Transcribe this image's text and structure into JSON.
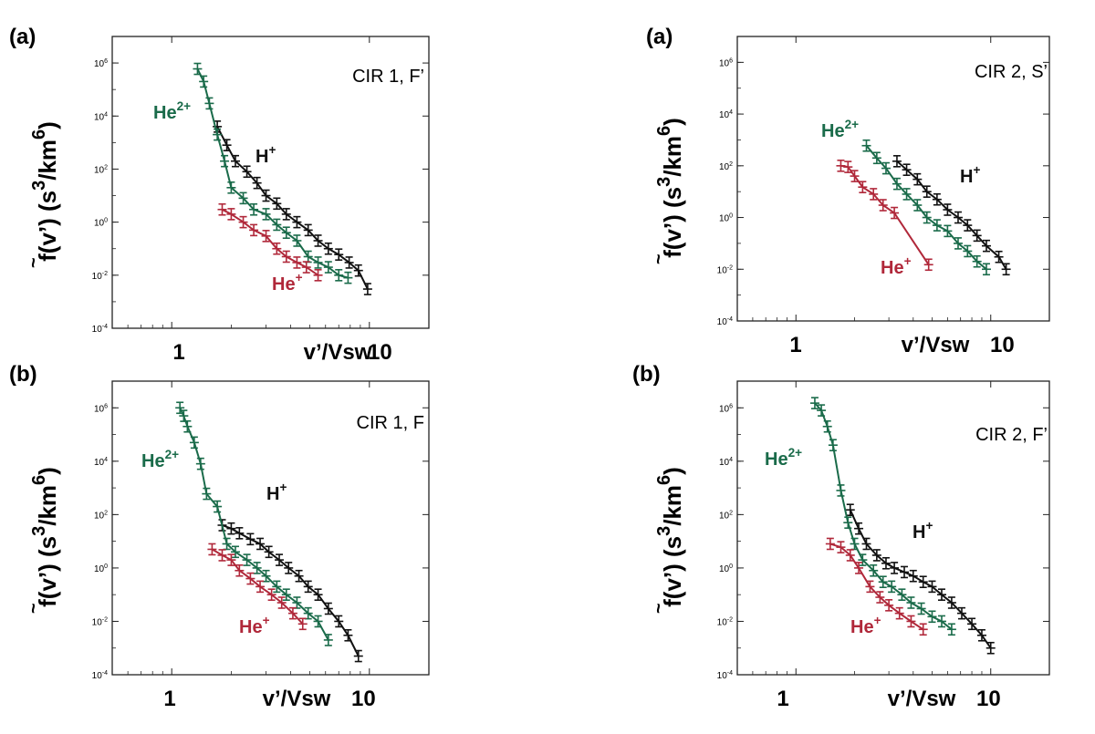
{
  "chart_data": [
    {
      "type": "scatter",
      "panel_label": "(a)",
      "title": "CIR 1, F’",
      "xlabel": "v’/Vsw",
      "ylabel": "f(v’) (s^3/km^6)",
      "x_scale": "log",
      "y_scale": "log",
      "xlim": [
        0.5,
        20
      ],
      "ylim": [
        0.0001,
        10000000
      ],
      "x_ticklabels": [
        "1",
        "10"
      ],
      "y_ticklabels": [
        "10^-4",
        "10^-2",
        "10^0",
        "10^2",
        "10^4",
        "10^6"
      ],
      "series": [
        {
          "name": "H+",
          "color": "#111111",
          "connected": true,
          "x": [
            1.7,
            1.9,
            2.1,
            2.4,
            2.7,
            3.0,
            3.4,
            3.8,
            4.3,
            4.9,
            5.5,
            6.2,
            7.0,
            7.9,
            8.8,
            9.8
          ],
          "y": [
            4000,
            800,
            200,
            80,
            30,
            10,
            5,
            2,
            1,
            0.5,
            0.2,
            0.1,
            0.06,
            0.03,
            0.015,
            0.003
          ]
        },
        {
          "name": "He2+",
          "color": "#1a6b4a",
          "connected": true,
          "x": [
            1.35,
            1.45,
            1.55,
            1.7,
            1.85,
            2.0,
            2.3,
            2.6,
            3.0,
            3.4,
            3.8,
            4.3,
            4.9,
            5.5,
            6.2,
            7.0,
            7.8
          ],
          "y": [
            600000,
            200000,
            30000,
            2000,
            200,
            20,
            8,
            3,
            2,
            0.8,
            0.4,
            0.2,
            0.05,
            0.03,
            0.02,
            0.01,
            0.008
          ]
        },
        {
          "name": "He+",
          "color": "#b0283a",
          "connected": true,
          "x": [
            1.8,
            2.0,
            2.3,
            2.6,
            3.0,
            3.4,
            3.8,
            4.3,
            4.8,
            5.5
          ],
          "y": [
            3,
            2,
            1,
            0.5,
            0.3,
            0.1,
            0.05,
            0.03,
            0.02,
            0.01
          ]
        }
      ],
      "series_labels": [
        {
          "text": "He",
          "sup": "2+",
          "series": "He2+"
        },
        {
          "text": "H",
          "sup": "+",
          "series": "H+"
        },
        {
          "text": "He",
          "sup": "+",
          "series": "He+"
        }
      ]
    },
    {
      "type": "scatter",
      "panel_label": "(a)",
      "title": "CIR 2, S’",
      "xlabel": "v’/Vsw",
      "ylabel": "f(v’) (s^3/km^6)",
      "x_scale": "log",
      "y_scale": "log",
      "xlim": [
        0.5,
        20
      ],
      "ylim": [
        0.0001,
        10000000
      ],
      "x_ticklabels": [
        "1",
        "10"
      ],
      "y_ticklabels": [
        "10^-4",
        "10^-2",
        "10^0",
        "10^2",
        "10^4",
        "10^6"
      ],
      "series": [
        {
          "name": "H+",
          "color": "#111111",
          "connected": true,
          "x": [
            3.3,
            3.7,
            4.2,
            4.7,
            5.3,
            6.0,
            6.8,
            7.6,
            8.5,
            9.5,
            11,
            12
          ],
          "y": [
            150,
            70,
            30,
            10,
            5,
            2,
            1,
            0.5,
            0.2,
            0.08,
            0.03,
            0.01
          ]
        },
        {
          "name": "He2+",
          "color": "#1a6b4a",
          "connected": true,
          "x": [
            2.3,
            2.6,
            2.9,
            3.3,
            3.7,
            4.2,
            4.7,
            5.3,
            6.0,
            6.8,
            7.6,
            8.5,
            9.5
          ],
          "y": [
            600,
            200,
            80,
            20,
            8,
            3,
            1,
            0.5,
            0.3,
            0.1,
            0.05,
            0.02,
            0.01
          ]
        },
        {
          "name": "He+",
          "color": "#b0283a",
          "connected": true,
          "x": [
            1.7,
            1.85,
            2.0,
            2.2,
            2.5,
            2.8,
            3.2,
            4.8
          ],
          "y": [
            100,
            90,
            40,
            15,
            8,
            3,
            1.5,
            0.015
          ]
        }
      ],
      "series_labels": [
        {
          "text": "He",
          "sup": "2+",
          "series": "He2+"
        },
        {
          "text": "H",
          "sup": "+",
          "series": "H+"
        },
        {
          "text": "He",
          "sup": "+",
          "series": "He+"
        }
      ]
    },
    {
      "type": "scatter",
      "panel_label": "(b)",
      "title": "CIR 1, F",
      "xlabel": "v’/Vsw",
      "ylabel": "f(v’) (s^3/km^6)",
      "x_scale": "log",
      "y_scale": "log",
      "xlim": [
        0.5,
        20
      ],
      "ylim": [
        0.0001,
        10000000
      ],
      "x_ticklabels": [
        "1",
        "10"
      ],
      "y_ticklabels": [
        "10^-4",
        "10^-2",
        "10^0",
        "10^2",
        "10^4",
        "10^6"
      ],
      "series": [
        {
          "name": "H+",
          "color": "#111111",
          "connected": true,
          "x": [
            1.8,
            2.0,
            2.2,
            2.5,
            2.8,
            3.1,
            3.5,
            3.9,
            4.4,
            4.9,
            5.5,
            6.2,
            7.0,
            7.8,
            8.8
          ],
          "y": [
            40,
            30,
            20,
            12,
            8,
            4,
            2,
            1,
            0.5,
            0.2,
            0.1,
            0.03,
            0.01,
            0.003,
            0.0005
          ]
        },
        {
          "name": "He2+",
          "color": "#1a6b4a",
          "connected": true,
          "x": [
            1.1,
            1.15,
            1.2,
            1.3,
            1.4,
            1.5,
            1.7,
            1.9,
            2.1,
            2.4,
            2.7,
            3.0,
            3.4,
            3.8,
            4.3,
            4.9,
            5.5,
            6.2
          ],
          "y": [
            1000000,
            500000,
            200000,
            50000,
            8000,
            600,
            200,
            8,
            4,
            2,
            1,
            0.5,
            0.2,
            0.1,
            0.05,
            0.02,
            0.01,
            0.002
          ]
        },
        {
          "name": "He+",
          "color": "#b0283a",
          "connected": true,
          "x": [
            1.6,
            1.8,
            2.0,
            2.2,
            2.5,
            2.8,
            3.2,
            3.6,
            4.1,
            4.6
          ],
          "y": [
            5,
            3,
            2,
            0.8,
            0.4,
            0.2,
            0.1,
            0.05,
            0.02,
            0.008
          ]
        }
      ],
      "series_labels": [
        {
          "text": "He",
          "sup": "2+",
          "series": "He2+"
        },
        {
          "text": "H",
          "sup": "+",
          "series": "H+"
        },
        {
          "text": "He",
          "sup": "+",
          "series": "He+"
        }
      ]
    },
    {
      "type": "scatter",
      "panel_label": "(b)",
      "title": "CIR 2, F’",
      "xlabel": "v’/Vsw",
      "ylabel": "f(v’) (s^3/km^6)",
      "x_scale": "log",
      "y_scale": "log",
      "xlim": [
        0.5,
        20
      ],
      "ylim": [
        0.0001,
        10000000
      ],
      "x_ticklabels": [
        "1",
        "10"
      ],
      "y_ticklabels": [
        "10^-4",
        "10^-2",
        "10^0",
        "10^2",
        "10^4",
        "10^6"
      ],
      "series": [
        {
          "name": "H+",
          "color": "#111111",
          "connected": true,
          "x": [
            1.9,
            2.1,
            2.3,
            2.6,
            2.9,
            3.2,
            3.6,
            4.0,
            4.5,
            5.0,
            5.6,
            6.3,
            7.1,
            8.0,
            9.0,
            10
          ],
          "y": [
            150,
            30,
            8,
            3,
            1.5,
            1,
            0.7,
            0.5,
            0.3,
            0.2,
            0.1,
            0.05,
            0.02,
            0.008,
            0.003,
            0.001
          ]
        },
        {
          "name": "He2+",
          "color": "#1a6b4a",
          "connected": true,
          "x": [
            1.25,
            1.35,
            1.45,
            1.55,
            1.7,
            1.85,
            2.0,
            2.2,
            2.5,
            2.8,
            3.1,
            3.5,
            3.9,
            4.4,
            5.0,
            5.6,
            6.3
          ],
          "y": [
            1500000,
            800000,
            200000,
            40000,
            800,
            50,
            8,
            2,
            0.8,
            0.3,
            0.2,
            0.1,
            0.05,
            0.03,
            0.015,
            0.01,
            0.005
          ]
        },
        {
          "name": "He+",
          "color": "#b0283a",
          "connected": true,
          "x": [
            1.5,
            1.7,
            1.9,
            2.1,
            2.4,
            2.7,
            3.0,
            3.4,
            3.9,
            4.5
          ],
          "y": [
            8,
            6,
            3,
            1,
            0.2,
            0.08,
            0.04,
            0.02,
            0.01,
            0.005
          ]
        }
      ],
      "series_labels": [
        {
          "text": "He",
          "sup": "2+",
          "series": "He2+"
        },
        {
          "text": "H",
          "sup": "+",
          "series": "H+"
        },
        {
          "text": "He",
          "sup": "+",
          "series": "He+"
        }
      ]
    }
  ]
}
